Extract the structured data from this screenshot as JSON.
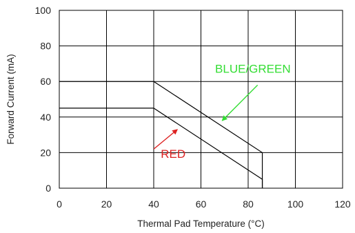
{
  "chart_data": {
    "type": "line",
    "xlabel": "Thermal Pad Temperature (°C)",
    "ylabel": "Forward Current (mA)",
    "xlim": [
      0,
      120
    ],
    "ylim": [
      0,
      100
    ],
    "x_ticks": [
      0,
      20,
      40,
      60,
      80,
      100,
      120
    ],
    "y_ticks": [
      0,
      20,
      40,
      60,
      80,
      100
    ],
    "grid": true,
    "series": [
      {
        "name": "BLUE/GREEN",
        "color": "#000000",
        "points": [
          [
            0,
            60
          ],
          [
            40,
            60
          ],
          [
            86,
            20
          ],
          [
            86,
            0
          ]
        ]
      },
      {
        "name": "RED",
        "color": "#000000",
        "points": [
          [
            0,
            45
          ],
          [
            40,
            45
          ],
          [
            86,
            5
          ],
          [
            86,
            0
          ]
        ]
      }
    ],
    "annotations": [
      {
        "text": "BLUE/GREEN",
        "color": "#33dd33",
        "label_at": [
          66,
          65
        ],
        "arrow_from": [
          84,
          58
        ],
        "arrow_to": [
          69,
          38
        ]
      },
      {
        "text": "RED",
        "color": "#dd2222",
        "label_at": [
          43,
          17
        ],
        "arrow_from": [
          40,
          22
        ],
        "arrow_to": [
          50,
          33
        ]
      }
    ]
  }
}
